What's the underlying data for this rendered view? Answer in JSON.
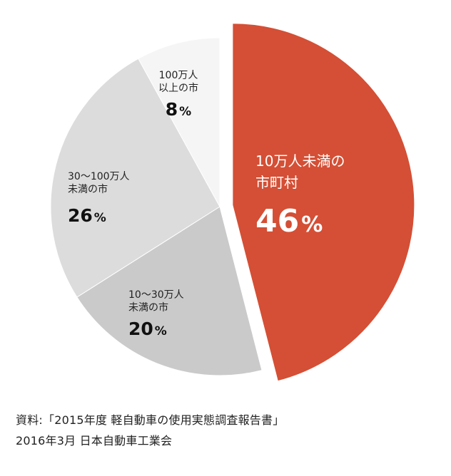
{
  "chart_data": {
    "type": "pie",
    "slices": [
      {
        "name_lines": [
          "10万人未満の",
          "市町村"
        ],
        "value": 46,
        "label": "46",
        "color": "#d44f35"
      },
      {
        "name_lines": [
          "10～30万人",
          "未満の市"
        ],
        "value": 20,
        "label": "20",
        "color": "#cacaca"
      },
      {
        "name_lines": [
          "30～100万人",
          "未満の市"
        ],
        "value": 26,
        "label": "26",
        "color": "#dcdcdc"
      },
      {
        "name_lines": [
          "100万人",
          "以上の市"
        ],
        "value": 8,
        "label": "8",
        "color": "#f5f5f5"
      }
    ],
    "unit": "%",
    "start_angle_deg": 0,
    "direction": "clockwise",
    "exploded_slice": 0
  },
  "source": {
    "line1": "資料:「2015年度 軽自動車の使用実態調査報告書」",
    "line2": "2016年3月 日本自動車工業会"
  }
}
